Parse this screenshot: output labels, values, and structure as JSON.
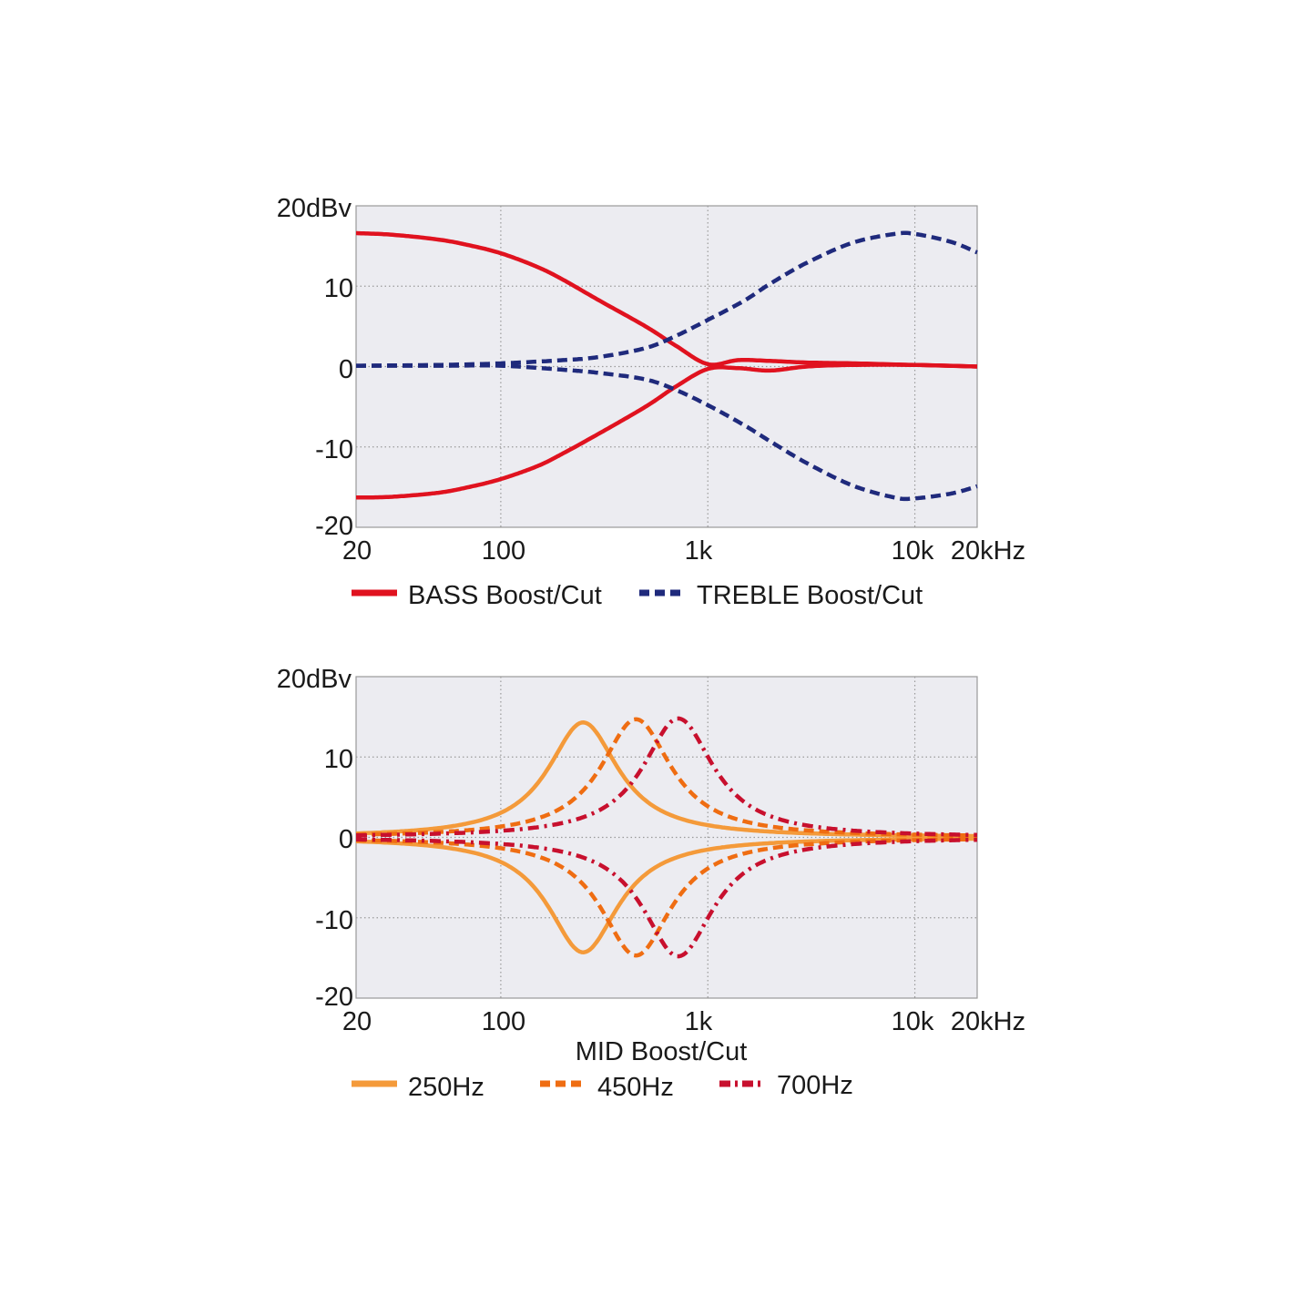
{
  "colors": {
    "bass": "#e0121f",
    "treble": "#1f2a7c",
    "mid_250": "#f49a3a",
    "mid_450": "#ef6d12",
    "mid_700": "#c8102e",
    "plot_bg": "#ececf1"
  },
  "chart_data": [
    {
      "type": "line",
      "x_scale": "log",
      "xlim": [
        20,
        20000
      ],
      "ylim": [
        -20,
        20
      ],
      "x_ticks": [
        20,
        100,
        1000,
        10000,
        20000
      ],
      "x_tick_labels": [
        "20",
        "100",
        "1k",
        "10k",
        "20kHz"
      ],
      "y_ticks": [
        20,
        10,
        0,
        -10,
        -20
      ],
      "y_tick_labels": [
        "20dBv",
        "10",
        "0",
        "-10",
        "-20"
      ],
      "grid": true,
      "legend_position": "bottom",
      "xlabel": "",
      "legend": [
        "BASS Boost/Cut",
        "TREBLE Boost/Cut"
      ],
      "series": [
        {
          "name": "BASS Boost/Cut",
          "group": "bass",
          "style": "solid",
          "color": "#e0121f",
          "x": [
            20,
            30,
            50,
            70,
            100,
            150,
            200,
            300,
            500,
            700,
            1000,
            1400,
            2000,
            3000,
            5000,
            10000,
            20000
          ],
          "y": [
            16.6,
            16.4,
            15.8,
            15.1,
            14.1,
            12.4,
            10.8,
            8.2,
            5.0,
            2.6,
            0.3,
            0.8,
            0.7,
            0.5,
            0.4,
            0.2,
            0.0
          ]
        },
        {
          "name": "BASS Boost/Cut (cut)",
          "group": "bass",
          "style": "solid",
          "color": "#e0121f",
          "x": [
            20,
            30,
            50,
            70,
            100,
            150,
            200,
            300,
            500,
            700,
            1000,
            1400,
            2000,
            3000,
            5000,
            10000,
            20000
          ],
          "y": [
            -16.3,
            -16.2,
            -15.7,
            -15.0,
            -14.0,
            -12.4,
            -10.8,
            -8.3,
            -5.0,
            -2.5,
            -0.3,
            -0.2,
            -0.5,
            0.0,
            0.2,
            0.2,
            0.0
          ]
        },
        {
          "name": "TREBLE Boost/Cut",
          "group": "treble",
          "style": "dashed",
          "color": "#1f2a7c",
          "x": [
            20,
            50,
            100,
            200,
            300,
            500,
            700,
            1000,
            1500,
            2000,
            3000,
            5000,
            8000,
            10000,
            15000,
            20000
          ],
          "y": [
            0.1,
            0.2,
            0.4,
            0.8,
            1.2,
            2.3,
            3.8,
            5.8,
            8.2,
            10.3,
            12.9,
            15.4,
            16.5,
            16.5,
            15.5,
            14.2
          ]
        },
        {
          "name": "TREBLE Boost/Cut (cut)",
          "group": "treble",
          "style": "dashed",
          "color": "#1f2a7c",
          "x": [
            20,
            50,
            100,
            200,
            300,
            500,
            700,
            1000,
            1500,
            2000,
            3000,
            5000,
            8000,
            10000,
            15000,
            20000
          ],
          "y": [
            0.1,
            0.1,
            0.1,
            -0.4,
            -0.8,
            -1.6,
            -2.9,
            -4.8,
            -7.3,
            -9.3,
            -12.0,
            -14.8,
            -16.3,
            -16.4,
            -15.8,
            -14.9
          ]
        }
      ]
    },
    {
      "type": "line",
      "x_scale": "log",
      "xlim": [
        20,
        20000
      ],
      "ylim": [
        -20,
        20
      ],
      "x_ticks": [
        20,
        100,
        1000,
        10000,
        20000
      ],
      "x_tick_labels": [
        "20",
        "100",
        "1k",
        "10k",
        "20kHz"
      ],
      "y_ticks": [
        20,
        10,
        0,
        -10,
        -20
      ],
      "y_tick_labels": [
        "20dBv",
        "10",
        "0",
        "-10",
        "-20"
      ],
      "grid": true,
      "legend_position": "bottom",
      "xlabel": "MID Boost/Cut",
      "legend": [
        "250Hz",
        "450Hz",
        "700Hz"
      ],
      "series": [
        {
          "name": "250Hz",
          "style": "solid",
          "color": "#f49a3a",
          "center_hz": 250,
          "gain_db": 14.3,
          "q": 0.95
        },
        {
          "name": "450Hz",
          "style": "dashed",
          "color": "#ef6d12",
          "center_hz": 450,
          "gain_db": 14.7,
          "q": 0.95
        },
        {
          "name": "700Hz",
          "style": "dashdot",
          "color": "#c8102e",
          "center_hz": 720,
          "gain_db": 14.8,
          "q": 0.95
        }
      ]
    }
  ],
  "legends": {
    "top": [
      {
        "label": "BASS Boost/Cut",
        "color": "#e0121f",
        "style": "solid"
      },
      {
        "label": "TREBLE Boost/Cut",
        "color": "#1f2a7c",
        "style": "dashed"
      }
    ],
    "bottom": [
      {
        "label": "250Hz",
        "color": "#f49a3a",
        "style": "solid"
      },
      {
        "label": "450Hz",
        "color": "#ef6d12",
        "style": "dashed"
      },
      {
        "label": "700Hz",
        "color": "#c8102e",
        "style": "dashdot"
      }
    ]
  }
}
